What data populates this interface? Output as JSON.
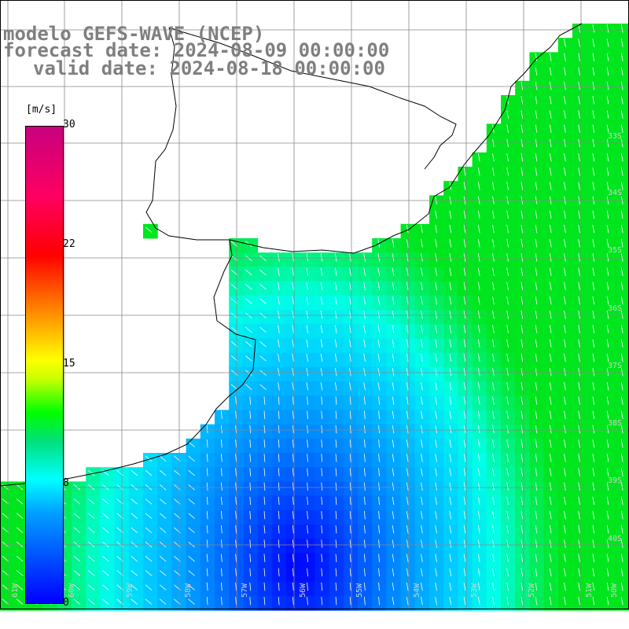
{
  "title": {
    "line1": "modelo GEFS-WAVE (NCEP)",
    "line2": "forecast date: 2024-08-09 00:00:00",
    "line3": "valid date: 2024-08-18 00:00:00"
  },
  "colorbar": {
    "unit": "[m/s]",
    "min": 0,
    "max": 30,
    "ticks": [
      "30",
      "22",
      "15",
      "8",
      "0"
    ],
    "colors": [
      "#0000ff",
      "#00a0ff",
      "#00ffff",
      "#00e07a",
      "#00ff00",
      "#c8ff00",
      "#ffff00",
      "#ff8000",
      "#ff0000",
      "#ff0060",
      "#c8007f"
    ]
  },
  "map": {
    "lon_labels": [
      "61W",
      "60W",
      "59W",
      "58W",
      "57W",
      "56W",
      "55W",
      "54W",
      "53W",
      "52W",
      "51W",
      "50W"
    ],
    "lat_labels": [
      "33S",
      "34S",
      "35S",
      "36S",
      "37S",
      "38S",
      "39S",
      "40S"
    ],
    "land_color": "#ffffff",
    "grid_color": "#888888",
    "coast_color": "#000000",
    "arrow_color": "#ffffff"
  }
}
